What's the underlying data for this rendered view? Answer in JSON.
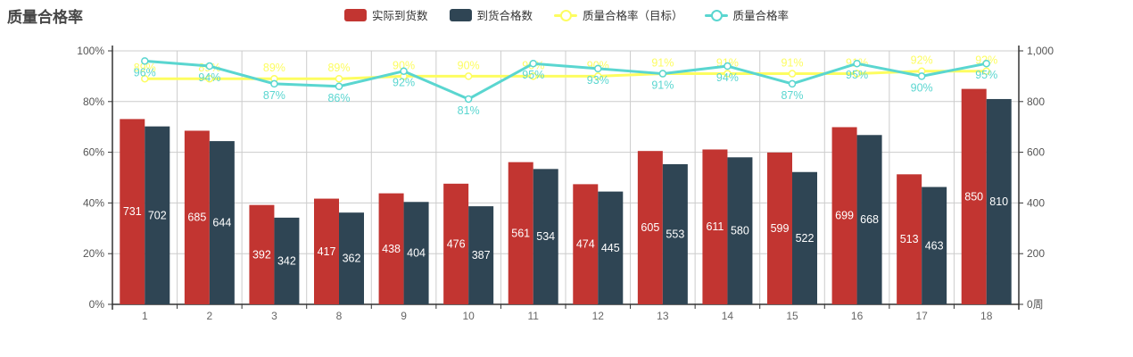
{
  "title": "质量合格率",
  "legend": [
    {
      "label": "实际到货数",
      "type": "bar",
      "color": "#c23531"
    },
    {
      "label": "到货合格数",
      "type": "bar",
      "color": "#2f4554"
    },
    {
      "label": "质量合格率（目标）",
      "type": "line",
      "color": "#fdfd60"
    },
    {
      "label": "质量合格率",
      "type": "line",
      "color": "#5ad6d0"
    }
  ],
  "chart_data": {
    "type": "bar",
    "subtype": "grouped bars with two percentage lines (dual axis)",
    "categories": [
      "1",
      "2",
      "3",
      "8",
      "9",
      "10",
      "11",
      "12",
      "13",
      "14",
      "15",
      "16",
      "17",
      "18"
    ],
    "series": [
      {
        "name": "实际到货数",
        "type": "bar",
        "axis": "right",
        "color": "#c23531",
        "values": [
          731,
          685,
          392,
          417,
          438,
          476,
          561,
          474,
          605,
          611,
          599,
          699,
          513,
          850
        ]
      },
      {
        "name": "到货合格数",
        "type": "bar",
        "axis": "right",
        "color": "#2f4554",
        "values": [
          702,
          644,
          342,
          362,
          404,
          387,
          534,
          445,
          553,
          580,
          522,
          668,
          463,
          810
        ]
      },
      {
        "name": "质量合格率（目标）",
        "type": "line",
        "axis": "left",
        "color": "#fdfd60",
        "values": [
          89,
          89,
          89,
          89,
          90,
          90,
          90,
          90,
          91,
          91,
          91,
          91,
          92,
          92
        ],
        "labels": [
          "89%",
          "89%",
          "89%",
          "89%",
          "90%",
          "90%",
          "90%",
          "90%",
          "91%",
          "91%",
          "91%",
          "91%",
          "92%",
          "92%"
        ]
      },
      {
        "name": "质量合格率",
        "type": "line",
        "axis": "left",
        "color": "#5ad6d0",
        "values": [
          96,
          94,
          87,
          86,
          92,
          81,
          95,
          93,
          91,
          94,
          87,
          95,
          90,
          95
        ],
        "labels": [
          "96%",
          "94%",
          "87%",
          "86%",
          "92%",
          "81%",
          "95%",
          "93%",
          "91%",
          "94%",
          "87%",
          "95%",
          "90%",
          "95%"
        ]
      }
    ],
    "left_axis": {
      "min": 0,
      "max": 100,
      "ticks": [
        "0%",
        "20%",
        "40%",
        "60%",
        "80%",
        "100%"
      ]
    },
    "right_axis": {
      "min": 0,
      "max": 1000,
      "ticks": [
        "0周",
        "200",
        "400",
        "600",
        "800",
        "1,000"
      ],
      "unit": "周"
    },
    "grid": true,
    "legend_position": "top-center",
    "colors": {
      "grid_line": "#cccccc",
      "axis_line": "#333333",
      "axis_label": "#555555",
      "x_label": "#666666",
      "bar_value_label": "#ffffff"
    }
  }
}
